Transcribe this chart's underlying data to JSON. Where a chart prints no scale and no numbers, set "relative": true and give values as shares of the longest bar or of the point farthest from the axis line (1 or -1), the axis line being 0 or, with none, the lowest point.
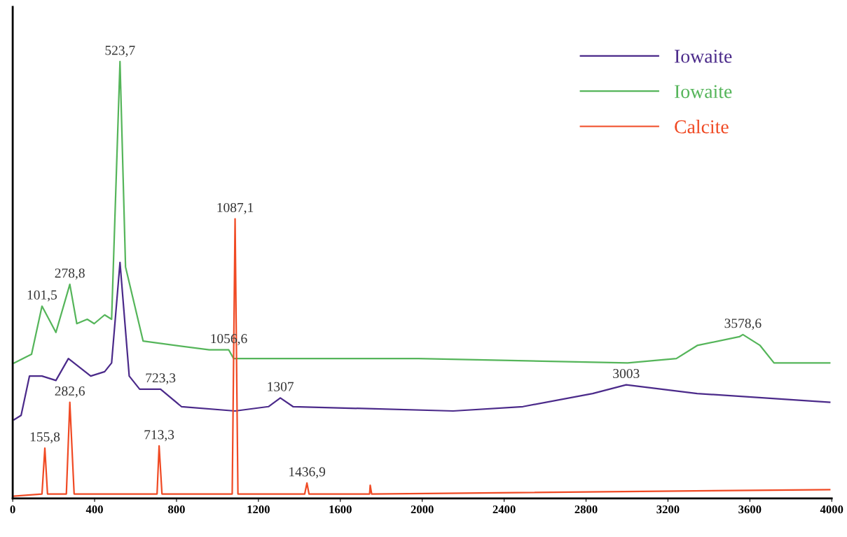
{
  "chart_data": {
    "type": "line",
    "relative": true,
    "xlim": [
      0,
      4000
    ],
    "xticks": [
      0,
      400,
      800,
      1200,
      1600,
      2000,
      2400,
      2800,
      3200,
      3600,
      4000
    ],
    "legend": "top right",
    "grid": false,
    "tick_labels": "x",
    "series": [
      {
        "name": "Iowaite",
        "color": "#4b2a8a",
        "x": [
          7,
          41,
          82,
          143,
          211,
          272,
          381,
          449,
          483,
          524,
          569,
          620,
          722,
          824,
          1086,
          1249,
          1307,
          1369,
          2151,
          2492,
          2832,
          2996,
          3343,
          3990
        ],
        "values": [
          0.18,
          0.19,
          0.28,
          0.28,
          0.27,
          0.32,
          0.28,
          0.29,
          0.31,
          0.54,
          0.28,
          0.25,
          0.25,
          0.21,
          0.2,
          0.21,
          0.23,
          0.21,
          0.2,
          0.21,
          0.24,
          0.26,
          0.24,
          0.22
        ]
      },
      {
        "name": "Iowaite",
        "color": "#55b55a",
        "x": [
          7,
          92,
          143,
          211,
          279,
          313,
          364,
          398,
          449,
          483,
          524,
          551,
          637,
          960,
          1055,
          1079,
          1981,
          3003,
          3241,
          3343,
          3549,
          3566,
          3650,
          3718,
          3990
        ],
        "values": [
          0.31,
          0.33,
          0.44,
          0.38,
          0.49,
          0.4,
          0.41,
          0.4,
          0.42,
          0.41,
          1.0,
          0.53,
          0.36,
          0.34,
          0.34,
          0.32,
          0.32,
          0.31,
          0.32,
          0.35,
          0.37,
          0.375,
          0.35,
          0.31,
          0.31
        ]
      },
      {
        "name": "Calcite",
        "color": "#f04a24",
        "x": [
          7,
          143,
          157,
          170,
          262,
          279,
          300,
          705,
          715,
          729,
          1072,
          1086,
          1100,
          1426,
          1437,
          1447,
          1743,
          1746,
          1753,
          3990
        ],
        "values": [
          0.005,
          0.01,
          0.115,
          0.01,
          0.01,
          0.22,
          0.01,
          0.01,
          0.12,
          0.01,
          0.01,
          0.64,
          0.01,
          0.01,
          0.035,
          0.01,
          0.01,
          0.03,
          0.01,
          0.02
        ]
      }
    ],
    "annotations": [
      {
        "text": "523,7",
        "x": 524,
        "y": 1.0
      },
      {
        "text": "101,5",
        "x": 143,
        "y": 0.44
      },
      {
        "text": "278,8",
        "x": 279,
        "y": 0.49
      },
      {
        "text": "1056,6",
        "x": 1055,
        "y": 0.34
      },
      {
        "text": "3578,6",
        "x": 3566,
        "y": 0.375
      },
      {
        "text": "723,3",
        "x": 722,
        "y": 0.25
      },
      {
        "text": "1307",
        "x": 1307,
        "y": 0.23
      },
      {
        "text": "3003",
        "x": 2996,
        "y": 0.26
      },
      {
        "text": "1087,1",
        "x": 1086,
        "y": 0.64
      },
      {
        "text": "282,6",
        "x": 279,
        "y": 0.22
      },
      {
        "text": "155,8",
        "x": 157,
        "y": 0.115
      },
      {
        "text": "713,3",
        "x": 715,
        "y": 0.12
      },
      {
        "text": "1436,9",
        "x": 1437,
        "y": 0.035
      }
    ]
  }
}
